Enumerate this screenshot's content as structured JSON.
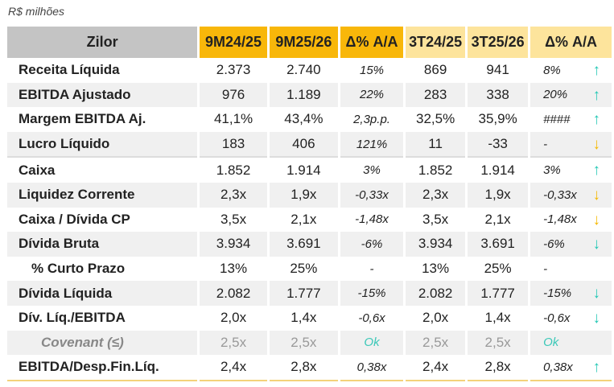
{
  "unit_label": "R$ milhões",
  "headers": [
    "Zilor",
    "9M24/25",
    "9M25/26",
    "Δ% A/A",
    "3T24/25",
    "3T25/26",
    "Δ% A/A"
  ],
  "rows": [
    {
      "label": "Receita Líquida",
      "v": [
        "2.373",
        "2.740",
        "15%",
        "869",
        "941",
        "8%"
      ],
      "arrow": "up"
    },
    {
      "label": "EBITDA Ajustado",
      "v": [
        "976",
        "1.189",
        "22%",
        "283",
        "338",
        "20%"
      ],
      "arrow": "up"
    },
    {
      "label": "Margem EBITDA Aj.",
      "v": [
        "41,1%",
        "43,4%",
        "2,3p.p.",
        "32,5%",
        "35,9%",
        "####"
      ],
      "arrow": "up"
    },
    {
      "label": "Lucro Líquido",
      "v": [
        "183",
        "406",
        "121%",
        "11",
        "-33",
        "-"
      ],
      "arrow": "down-yellow"
    },
    {
      "label": "Caixa",
      "v": [
        "1.852",
        "1.914",
        "3%",
        "1.852",
        "1.914",
        "3%"
      ],
      "arrow": "up"
    },
    {
      "label": "Liquidez Corrente",
      "v": [
        "2,3x",
        "1,9x",
        "-0,33x",
        "2,3x",
        "1,9x",
        "-0,33x"
      ],
      "arrow": "down-yellow"
    },
    {
      "label": "Caixa / Dívida CP",
      "v": [
        "3,5x",
        "2,1x",
        "-1,48x",
        "3,5x",
        "2,1x",
        "-1,48x"
      ],
      "arrow": "down-yellow"
    },
    {
      "label": "Dívida Bruta",
      "v": [
        "3.934",
        "3.691",
        "-6%",
        "3.934",
        "3.691",
        "-6%"
      ],
      "arrow": "down-teal"
    },
    {
      "label": "% Curto Prazo",
      "v": [
        "13%",
        "25%",
        "-",
        "13%",
        "25%",
        "-"
      ],
      "arrow": ""
    },
    {
      "label": "Dívida Líquida",
      "v": [
        "2.082",
        "1.777",
        "-15%",
        "2.082",
        "1.777",
        "-15%"
      ],
      "arrow": "down-teal"
    },
    {
      "label": "Dív. Líq./EBITDA",
      "v": [
        "2,0x",
        "1,4x",
        "-0,6x",
        "2,0x",
        "1,4x",
        "-0,6x"
      ],
      "arrow": "down-teal"
    },
    {
      "label": "Covenant (≤)",
      "v": [
        "2,5x",
        "2,5x",
        "Ok",
        "2,5x",
        "2,5x",
        "Ok"
      ],
      "arrow": ""
    },
    {
      "label": "EBITDA/Desp.Fin.Líq.",
      "v": [
        "2,4x",
        "2,8x",
        "0,38x",
        "2,4x",
        "2,8x",
        "0,38x"
      ],
      "arrow": "up"
    }
  ],
  "arrows": {
    "up": "↑",
    "down": "↓"
  },
  "colors": {
    "header_dark": "#f8b70a",
    "header_light": "#fde49c",
    "arrow_teal": "#22c7b4",
    "arrow_yellow": "#f5b800"
  }
}
